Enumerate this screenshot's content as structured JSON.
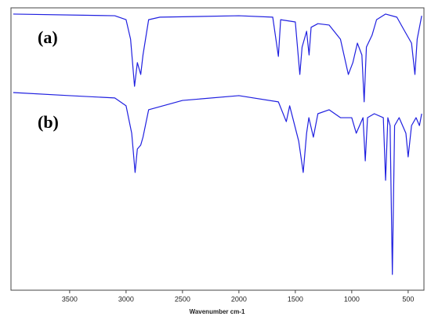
{
  "chart_data": {
    "type": "line",
    "x_label": "Wavenumber cm-1",
    "annotations": [
      "(a)",
      "(b)"
    ],
    "xlim": [
      4020,
      360
    ],
    "ylim": [
      0,
      100
    ],
    "xticks": [
      3500,
      3000,
      2500,
      2000,
      1500,
      1000,
      500
    ],
    "series": [
      {
        "color": "#2020e0",
        "x": [
          4000,
          3100,
          3000,
          2960,
          2925,
          2900,
          2870,
          2850,
          2800,
          2700,
          2000,
          1700,
          1650,
          1630,
          1500,
          1460,
          1440,
          1400,
          1378,
          1360,
          1300,
          1200,
          1100,
          1030,
          990,
          950,
          910,
          890,
          870,
          820,
          780,
          700,
          600,
          530,
          470,
          440,
          420,
          380
        ],
        "values": [
          97.8,
          97.2,
          95.8,
          88.9,
          72.2,
          80.6,
          76.4,
          83.3,
          95.8,
          96.7,
          97.2,
          96.7,
          82.8,
          95.8,
          95.0,
          76.4,
          86.1,
          91.7,
          83.3,
          93.1,
          94.4,
          93.9,
          88.9,
          76.4,
          80.6,
          87.5,
          83.3,
          66.7,
          86.1,
          90.3,
          95.8,
          97.8,
          96.7,
          91.7,
          87.5,
          76.4,
          88.9,
          97.2
        ]
      },
      {
        "color": "#2020e0",
        "x": [
          4000,
          3500,
          3100,
          3000,
          2950,
          2920,
          2900,
          2870,
          2850,
          2800,
          2500,
          2000,
          1650,
          1580,
          1550,
          1470,
          1430,
          1400,
          1380,
          1340,
          1300,
          1200,
          1100,
          1000,
          960,
          900,
          880,
          860,
          800,
          720,
          700,
          680,
          660,
          640,
          620,
          580,
          520,
          500,
          470,
          430,
          400,
          380
        ],
        "values": [
          70.0,
          68.9,
          68.1,
          65.3,
          55.6,
          41.7,
          50.0,
          51.4,
          54.2,
          63.9,
          67.2,
          68.9,
          66.7,
          59.7,
          65.3,
          52.8,
          41.7,
          55.6,
          61.1,
          54.2,
          62.5,
          63.9,
          61.1,
          61.1,
          55.6,
          61.1,
          45.8,
          61.1,
          62.5,
          61.1,
          38.9,
          61.1,
          58.3,
          5.6,
          58.3,
          61.1,
          55.6,
          47.2,
          58.3,
          61.1,
          58.3,
          62.5
        ]
      }
    ]
  }
}
